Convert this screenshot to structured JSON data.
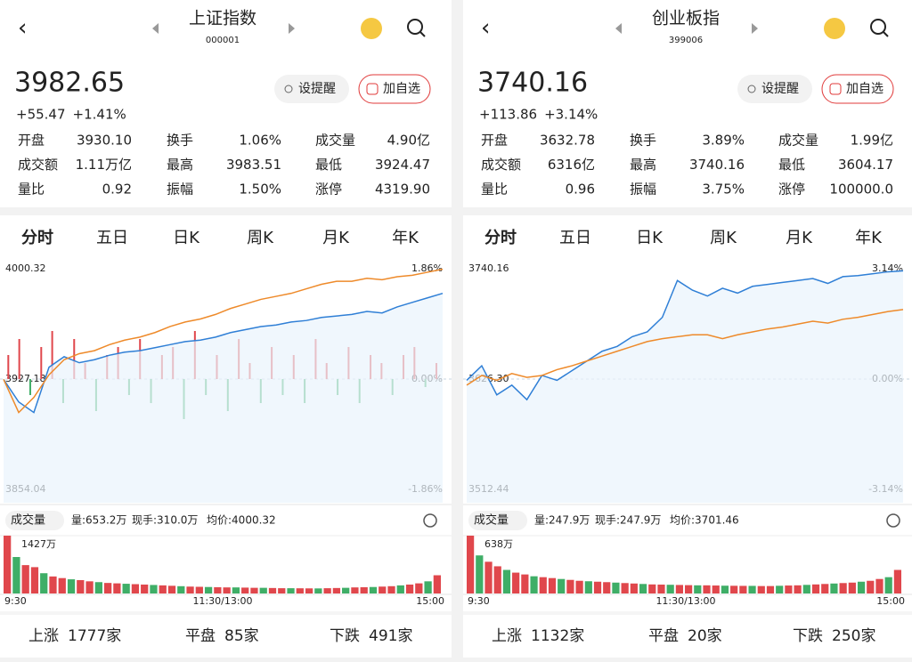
{
  "panels": [
    {
      "header": {
        "title": "上证指数",
        "code": "000001"
      },
      "quote": {
        "price": "3982.65",
        "change": "+55.47",
        "change_pct": "+1.41%"
      },
      "buttons": [
        "设提醒",
        "加自选"
      ],
      "stats": [
        [
          {
            "label": "开盘",
            "value": "3930.10",
            "color": "#e03a3a"
          },
          {
            "label": "换手",
            "value": "1.06%",
            "color": "#222222"
          },
          {
            "label": "成交量",
            "value": "4.90亿",
            "color": "#222222"
          }
        ],
        [
          {
            "label": "成交额",
            "value": "1.11万亿",
            "color": "#222222"
          },
          {
            "label": "最高",
            "value": "3983.51",
            "color": "#e03a3a"
          },
          {
            "label": "最低",
            "value": "3924.47",
            "color": "#1f9a4a"
          }
        ],
        [
          {
            "label": "量比",
            "value": "0.92",
            "color": "#222222"
          },
          {
            "label": "振幅",
            "value": "1.50%",
            "color": "#222222"
          },
          {
            "label": "涨停",
            "value": "4319.90",
            "color": "#e03a3a"
          }
        ]
      ],
      "tabs": [
        "分时",
        "五日",
        "日K",
        "周K",
        "月K",
        "年K"
      ],
      "chart": {
        "yticks": [
          3854.04,
          3927.18,
          4000.32
        ],
        "pct_ticks": [
          "-1.86%",
          "0.00%",
          "1.86%"
        ],
        "series": [
          {
            "color": "#2f7fd6",
            "values": [
              3927,
              3912,
              3905,
              3935,
              3942,
              3938,
              3940,
              3943,
              3945,
              3946,
              3948,
              3950,
              3952,
              3953,
              3955,
              3958,
              3960,
              3962,
              3963,
              3965,
              3966,
              3968,
              3969,
              3970,
              3972,
              3971,
              3975,
              3978,
              3981,
              3984
            ]
          },
          {
            "color": "#ee8a2a",
            "values": [
              3927,
              3905,
              3915,
              3930,
              3940,
              3944,
              3946,
              3950,
              3953,
              3955,
              3958,
              3962,
              3965,
              3967,
              3970,
              3974,
              3977,
              3980,
              3982,
              3984,
              3987,
              3990,
              3992,
              3992,
              3994,
              3993,
              3995,
              3996,
              3998,
              4000
            ]
          }
        ],
        "flow": [
          3,
          5,
          -2,
          4,
          6,
          -3,
          5,
          2,
          -4,
          3,
          4,
          -2,
          5,
          -3,
          3,
          4,
          -5,
          6,
          -2,
          3,
          -4,
          5,
          2,
          -3,
          4,
          -2,
          3,
          -3,
          5,
          2,
          -2,
          4,
          -3,
          3,
          2,
          -2,
          3,
          4,
          -1,
          2
        ]
      },
      "volume": {
        "label": "成交量",
        "stats": [
          "量:653.2万",
          "现手:310.0万",
          "均价:4000.32"
        ],
        "max": {
          "value": 1427,
          "label": "1427万"
        },
        "values": [
          1427,
          900,
          700,
          650,
          500,
          420,
          380,
          350,
          330,
          300,
          280,
          260,
          250,
          240,
          230,
          220,
          210,
          200,
          190,
          180,
          170,
          165,
          160,
          155,
          150,
          150,
          145,
          140,
          140,
          135,
          130,
          130,
          128,
          126,
          125,
          130,
          135,
          140,
          150,
          155,
          160,
          170,
          180,
          200,
          220,
          250,
          300,
          450
        ]
      },
      "time_axis": [
        "9:30",
        "11:30/13:00",
        "15:00"
      ],
      "breadth": [
        {
          "label": "上涨",
          "value": "1777家",
          "color": "#e03a3a"
        },
        {
          "label": "平盘",
          "value": "85家",
          "color": "#9fb3c8"
        },
        {
          "label": "下跌",
          "value": "491家",
          "color": "#1f9a4a"
        }
      ]
    },
    {
      "header": {
        "title": "创业板指",
        "code": "399006"
      },
      "quote": {
        "price": "3740.16",
        "change": "+113.86",
        "change_pct": "+3.14%"
      },
      "buttons": [
        "设提醒",
        "加自选"
      ],
      "stats": [
        [
          {
            "label": "开盘",
            "value": "3632.78",
            "color": "#e03a3a"
          },
          {
            "label": "换手",
            "value": "3.89%",
            "color": "#222222"
          },
          {
            "label": "成交量",
            "value": "1.99亿",
            "color": "#222222"
          }
        ],
        [
          {
            "label": "成交额",
            "value": "6316亿",
            "color": "#222222"
          },
          {
            "label": "最高",
            "value": "3740.16",
            "color": "#e03a3a"
          },
          {
            "label": "最低",
            "value": "3604.17",
            "color": "#1f9a4a"
          }
        ],
        [
          {
            "label": "量比",
            "value": "0.96",
            "color": "#222222"
          },
          {
            "label": "振幅",
            "value": "3.75%",
            "color": "#222222"
          },
          {
            "label": "涨停",
            "value": "100000.0",
            "color": "#e03a3a"
          }
        ]
      ],
      "tabs": [
        "分时",
        "五日",
        "日K",
        "周K",
        "月K",
        "年K"
      ],
      "chart": {
        "yticks": [
          3512.44,
          {
            "value": 3626.3,
            "label": "3626.30"
          },
          3740.16
        ],
        "pct_ticks": [
          "-3.14%",
          "0.00%",
          "3.14%"
        ],
        "series": [
          {
            "color": "#2f7fd6",
            "values": [
              3625,
              3640,
              3610,
              3620,
              3605,
              3630,
              3625,
              3635,
              3645,
              3655,
              3660,
              3670,
              3675,
              3690,
              3728,
              3718,
              3712,
              3720,
              3715,
              3722,
              3724,
              3726,
              3728,
              3730,
              3725,
              3732,
              3733,
              3735,
              3737,
              3738
            ]
          },
          {
            "color": "#ee8a2a",
            "values": [
              3620,
              3630,
              3625,
              3632,
              3628,
              3630,
              3636,
              3640,
              3645,
              3650,
              3655,
              3660,
              3665,
              3668,
              3670,
              3672,
              3672,
              3668,
              3672,
              3675,
              3678,
              3680,
              3683,
              3686,
              3684,
              3688,
              3690,
              3693,
              3696,
              3698
            ]
          }
        ]
      },
      "volume": {
        "label": "成交量",
        "stats": [
          "量:247.9万",
          "现手:247.9万",
          "均价:3701.46"
        ],
        "max": {
          "value": 638,
          "label": "638万"
        },
        "values": [
          638,
          420,
          350,
          300,
          260,
          230,
          210,
          190,
          180,
          170,
          160,
          150,
          140,
          135,
          130,
          125,
          120,
          115,
          110,
          105,
          100,
          98,
          96,
          94,
          92,
          90,
          90,
          88,
          86,
          85,
          84,
          84,
          82,
          82,
          85,
          88,
          90,
          95,
          100,
          105,
          110,
          115,
          120,
          130,
          140,
          160,
          180,
          260
        ]
      },
      "time_axis": [
        "9:30",
        "11:30/13:00",
        "15:00"
      ],
      "breadth": [
        {
          "label": "上涨",
          "value": "1132家",
          "color": "#e03a3a"
        },
        {
          "label": "平盘",
          "value": "20家",
          "color": "#9fb3c8"
        },
        {
          "label": "下跌",
          "value": "250家",
          "color": "#1f9a4a"
        }
      ]
    }
  ]
}
